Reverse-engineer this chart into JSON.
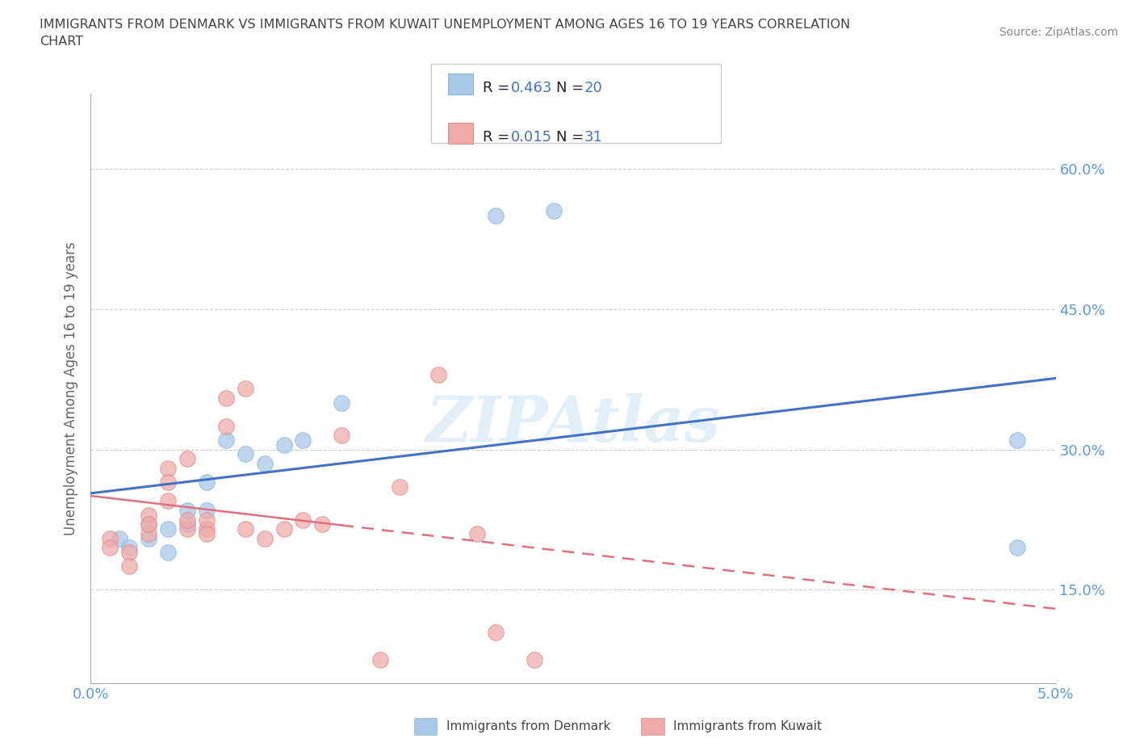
{
  "title_line1": "IMMIGRANTS FROM DENMARK VS IMMIGRANTS FROM KUWAIT UNEMPLOYMENT AMONG AGES 16 TO 19 YEARS CORRELATION",
  "title_line2": "CHART",
  "source": "Source: ZipAtlas.com",
  "ylabel": "Unemployment Among Ages 16 to 19 years",
  "xlim": [
    0.0,
    0.05
  ],
  "ylim": [
    0.05,
    0.68
  ],
  "yticks": [
    0.15,
    0.3,
    0.45,
    0.6
  ],
  "ytick_labels": [
    "15.0%",
    "30.0%",
    "45.0%",
    "60.0%"
  ],
  "xticks": [
    0.0,
    0.01,
    0.02,
    0.03,
    0.04,
    0.05
  ],
  "xtick_labels": [
    "0.0%",
    "",
    "",
    "",
    "",
    "5.0%"
  ],
  "denmark_color": "#A8C8E8",
  "kuwait_color": "#F0AAAA",
  "denmark_R": 0.463,
  "denmark_N": 20,
  "kuwait_R": 0.015,
  "kuwait_N": 31,
  "denmark_line_color": "#4472C4",
  "kuwait_line_color": "#E07080",
  "watermark": "ZIPAtlas",
  "denmark_x": [
    0.0015,
    0.002,
    0.003,
    0.003,
    0.004,
    0.004,
    0.005,
    0.005,
    0.006,
    0.006,
    0.007,
    0.008,
    0.009,
    0.01,
    0.011,
    0.013,
    0.021,
    0.024,
    0.048,
    0.048
  ],
  "denmark_y": [
    0.205,
    0.195,
    0.22,
    0.205,
    0.19,
    0.215,
    0.235,
    0.22,
    0.265,
    0.235,
    0.31,
    0.295,
    0.285,
    0.305,
    0.31,
    0.35,
    0.55,
    0.555,
    0.31,
    0.195
  ],
  "kuwait_x": [
    0.001,
    0.001,
    0.002,
    0.002,
    0.003,
    0.003,
    0.003,
    0.004,
    0.004,
    0.004,
    0.005,
    0.005,
    0.005,
    0.006,
    0.006,
    0.006,
    0.007,
    0.007,
    0.008,
    0.008,
    0.009,
    0.01,
    0.011,
    0.012,
    0.013,
    0.015,
    0.016,
    0.018,
    0.02,
    0.021,
    0.023
  ],
  "kuwait_y": [
    0.205,
    0.195,
    0.19,
    0.175,
    0.21,
    0.23,
    0.22,
    0.28,
    0.265,
    0.245,
    0.215,
    0.225,
    0.29,
    0.215,
    0.225,
    0.21,
    0.355,
    0.325,
    0.365,
    0.215,
    0.205,
    0.215,
    0.225,
    0.22,
    0.315,
    0.075,
    0.26,
    0.38,
    0.21,
    0.105,
    0.075
  ]
}
